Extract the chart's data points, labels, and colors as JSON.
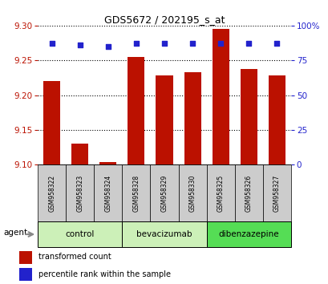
{
  "title": "GDS5672 / 202195_s_at",
  "samples": [
    "GSM958322",
    "GSM958323",
    "GSM958324",
    "GSM958328",
    "GSM958329",
    "GSM958330",
    "GSM958325",
    "GSM958326",
    "GSM958327"
  ],
  "transformed_counts": [
    9.22,
    9.13,
    9.104,
    9.255,
    9.228,
    9.233,
    9.295,
    9.238,
    9.228
  ],
  "percentile_ranks": [
    87,
    86,
    85,
    87,
    87,
    87,
    87,
    87,
    87
  ],
  "groups": [
    {
      "name": "control",
      "indices": [
        0,
        1,
        2
      ],
      "color": "#ccf0b8"
    },
    {
      "name": "bevacizumab",
      "indices": [
        3,
        4,
        5
      ],
      "color": "#ccf0b8"
    },
    {
      "name": "dibenzazepine",
      "indices": [
        6,
        7,
        8
      ],
      "color": "#55dd55"
    }
  ],
  "ylim_left": [
    9.1,
    9.3
  ],
  "ylim_right": [
    0,
    100
  ],
  "yticks_left": [
    9.1,
    9.15,
    9.2,
    9.25,
    9.3
  ],
  "yticks_right": [
    0,
    25,
    50,
    75,
    100
  ],
  "bar_color": "#bb1100",
  "dot_color": "#2222cc",
  "bar_width": 0.6,
  "background_color": "#ffffff",
  "legend_items": [
    "transformed count",
    "percentile rank within the sample"
  ],
  "agent_label": "agent"
}
